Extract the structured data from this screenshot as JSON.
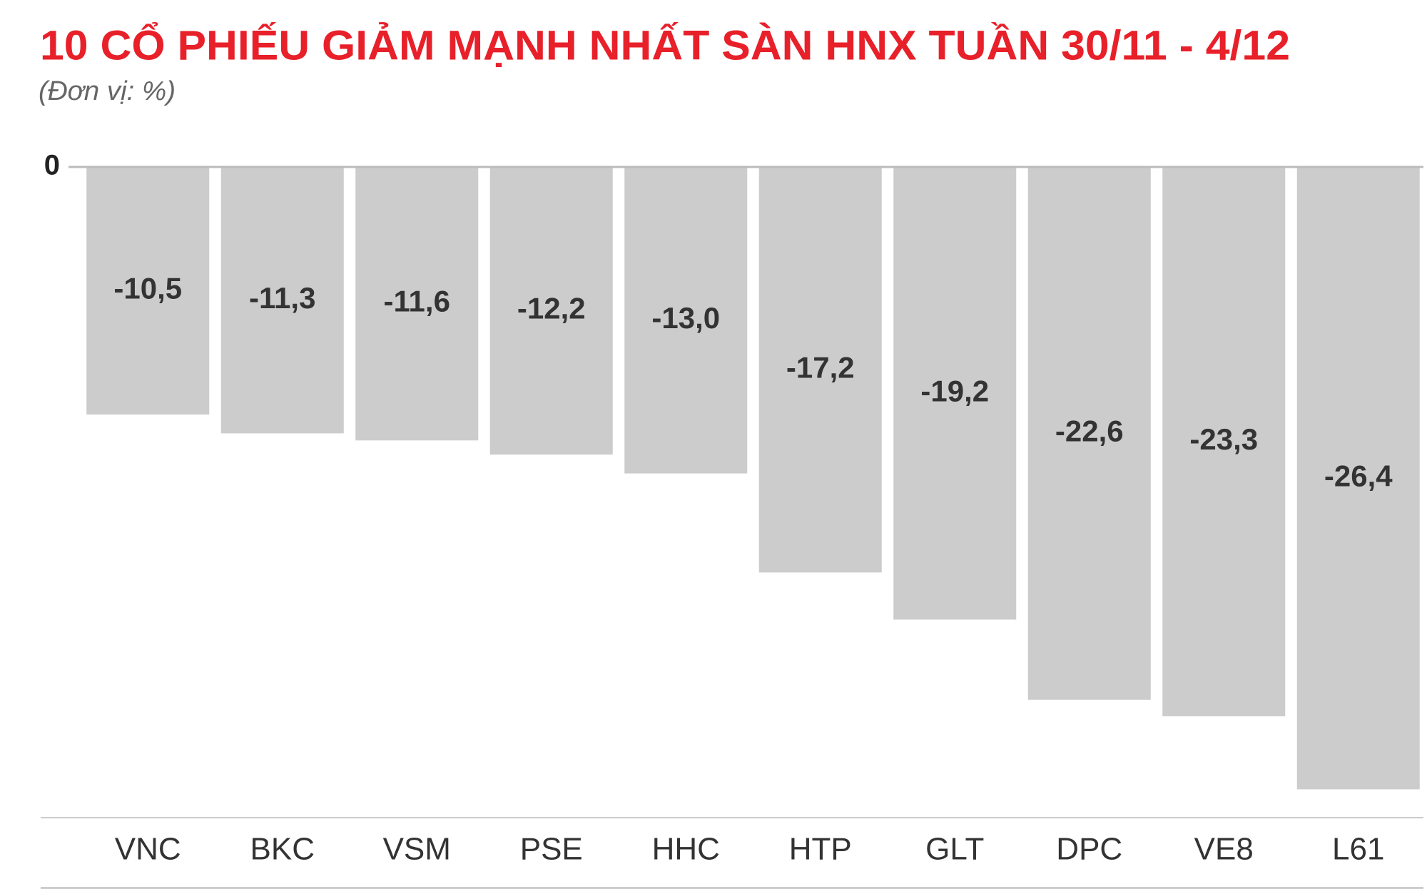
{
  "chart_data": {
    "type": "bar",
    "title": "10 CỔ PHIẾU GIẢM MẠNH NHẤT SÀN HNX TUẦN 30/11 - 4/12",
    "subtitle": "(Đơn vị: %)",
    "categories": [
      "VNC",
      "BKC",
      "VSM",
      "PSE",
      "HHC",
      "HTP",
      "GLT",
      "DPC",
      "VE8",
      "L61"
    ],
    "values": [
      -10.5,
      -11.3,
      -11.6,
      -12.2,
      -13.0,
      -17.2,
      -19.2,
      -22.6,
      -23.3,
      -26.4
    ],
    "value_labels": [
      "-10,5",
      "-11,3",
      "-11,6",
      "-12,2",
      "-13,0",
      "-17,2",
      "-19,2",
      "-22,6",
      "-23,3",
      "-26,4"
    ],
    "color": "#cccccc",
    "ylim": [
      -27.6,
      0
    ],
    "yticks": [
      0
    ],
    "grid": true
  }
}
